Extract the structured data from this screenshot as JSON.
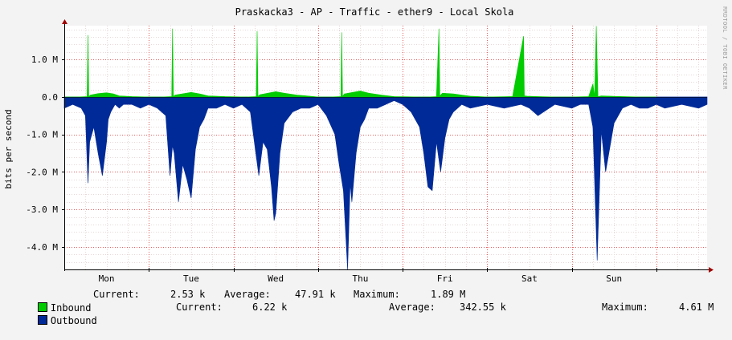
{
  "chart_data": {
    "type": "area",
    "title": "Praskacka3 - AP - Traffic - ether9 - Local Skola",
    "ylabel": "bits per second",
    "watermark": "RRDTOOL / TOBI OETIKER",
    "y_ticks": [
      "1.0 M",
      "0.0",
      "-1.0 M",
      "-2.0 M",
      "-3.0 M",
      "-4.0 M"
    ],
    "y_tick_values": [
      1000000,
      0,
      -1000000,
      -2000000,
      -3000000,
      -4000000
    ],
    "ylim": [
      -4.6,
      1.9
    ],
    "categories": [
      "Mon",
      "Tue",
      "Wed",
      "Thu",
      "Fri",
      "Sat",
      "Sun"
    ],
    "xlim": [
      0,
      7.6
    ],
    "grid": true,
    "series": [
      {
        "name": "Inbound",
        "color": "#00cc00",
        "x": [
          0.0,
          0.15,
          0.27,
          0.28,
          0.29,
          0.31,
          0.4,
          0.5,
          0.58,
          0.65,
          0.8,
          1.0,
          1.15,
          1.27,
          1.28,
          1.29,
          1.31,
          1.5,
          1.6,
          1.7,
          1.9,
          2.15,
          2.27,
          2.28,
          2.29,
          2.31,
          2.5,
          2.6,
          2.75,
          2.9,
          3.0,
          3.15,
          3.27,
          3.28,
          3.29,
          3.31,
          3.5,
          3.6,
          3.75,
          3.9,
          4.2,
          4.3,
          4.4,
          4.43,
          4.44,
          4.45,
          4.47,
          4.6,
          4.7,
          4.8,
          5.0,
          5.3,
          5.43,
          5.44,
          5.45,
          5.47,
          5.6,
          5.8,
          6.0,
          6.2,
          6.25,
          6.27,
          6.29,
          6.31,
          6.35,
          6.45,
          6.6,
          6.8,
          7.0
        ],
        "values": [
          0,
          0,
          0.01,
          1.65,
          0.01,
          0.05,
          0.09,
          0.11,
          0.08,
          0.03,
          0.01,
          0,
          0,
          0.01,
          1.82,
          0.01,
          0.05,
          0.12,
          0.08,
          0.03,
          0.01,
          0,
          0.01,
          1.75,
          0.01,
          0.06,
          0.14,
          0.1,
          0.05,
          0.02,
          0,
          0,
          0.01,
          1.72,
          0.01,
          0.08,
          0.16,
          0.1,
          0.05,
          0.01,
          0,
          0,
          0.01,
          1.82,
          0.01,
          0.05,
          0.1,
          0.08,
          0.05,
          0.02,
          0,
          0.01,
          1.62,
          0.01,
          0.03,
          0.02,
          0.01,
          0,
          0,
          0.01,
          0.35,
          0.01,
          1.89,
          0.01,
          0.03,
          0.02,
          0.01,
          0,
          0
        ]
      },
      {
        "name": "Outbound",
        "color": "#002a97",
        "x": [
          0.0,
          0.1,
          0.2,
          0.25,
          0.28,
          0.3,
          0.35,
          0.4,
          0.45,
          0.5,
          0.52,
          0.55,
          0.6,
          0.65,
          0.7,
          0.8,
          0.9,
          1.0,
          1.1,
          1.2,
          1.25,
          1.28,
          1.3,
          1.35,
          1.4,
          1.45,
          1.5,
          1.55,
          1.6,
          1.65,
          1.7,
          1.8,
          1.9,
          2.0,
          2.1,
          2.2,
          2.3,
          2.35,
          2.4,
          2.45,
          2.48,
          2.5,
          2.55,
          2.6,
          2.7,
          2.8,
          2.9,
          3.0,
          3.1,
          3.2,
          3.25,
          3.3,
          3.35,
          3.38,
          3.4,
          3.45,
          3.5,
          3.55,
          3.6,
          3.7,
          3.8,
          3.9,
          4.0,
          4.1,
          4.2,
          4.25,
          4.3,
          4.35,
          4.4,
          4.45,
          4.5,
          4.55,
          4.6,
          4.65,
          4.7,
          4.8,
          5.0,
          5.2,
          5.4,
          5.5,
          5.6,
          5.8,
          6.0,
          6.1,
          6.2,
          6.25,
          6.3,
          6.35,
          6.4,
          6.5,
          6.6,
          6.7,
          6.8,
          6.9,
          7.0,
          7.1,
          7.3,
          7.5,
          7.6
        ],
        "values": [
          -0.3,
          -0.2,
          -0.3,
          -0.5,
          -2.3,
          -1.2,
          -0.8,
          -1.5,
          -2.1,
          -1.2,
          -0.6,
          -0.4,
          -0.2,
          -0.3,
          -0.2,
          -0.2,
          -0.3,
          -0.2,
          -0.3,
          -0.5,
          -2.1,
          -1.3,
          -1.5,
          -2.8,
          -1.8,
          -2.2,
          -2.7,
          -1.4,
          -0.8,
          -0.6,
          -0.3,
          -0.3,
          -0.2,
          -0.3,
          -0.2,
          -0.4,
          -2.1,
          -1.2,
          -1.4,
          -2.4,
          -3.3,
          -3.1,
          -1.5,
          -0.7,
          -0.4,
          -0.3,
          -0.3,
          -0.2,
          -0.5,
          -1.0,
          -1.8,
          -2.5,
          -4.6,
          -2.3,
          -2.8,
          -1.5,
          -0.8,
          -0.6,
          -0.3,
          -0.3,
          -0.2,
          -0.1,
          -0.2,
          -0.4,
          -0.8,
          -1.5,
          -2.4,
          -2.5,
          -1.2,
          -2.0,
          -1.1,
          -0.6,
          -0.4,
          -0.3,
          -0.2,
          -0.3,
          -0.2,
          -0.3,
          -0.2,
          -0.3,
          -0.5,
          -0.2,
          -0.3,
          -0.2,
          -0.2,
          -0.8,
          -4.36,
          -0.9,
          -2.0,
          -0.7,
          -0.3,
          -0.2,
          -0.3,
          -0.3,
          -0.2,
          -0.3,
          -0.2,
          -0.3,
          -0.2
        ]
      }
    ]
  },
  "legend": {
    "inbound": {
      "name": "Inbound",
      "current_label": "Current:",
      "current": "2.53 k",
      "average_label": "Average:",
      "average": "47.91 k",
      "maximum_label": "Maximum:",
      "maximum": "1.89 M"
    },
    "outbound": {
      "name": "Outbound",
      "current_label": "Current:",
      "current": "6.22 k",
      "average_label": "Average:",
      "average": "342.55 k",
      "maximum_label": "Maximum:",
      "maximum": "4.61 M"
    }
  },
  "colors": {
    "inbound": "#00cc00",
    "outbound": "#002a97"
  }
}
